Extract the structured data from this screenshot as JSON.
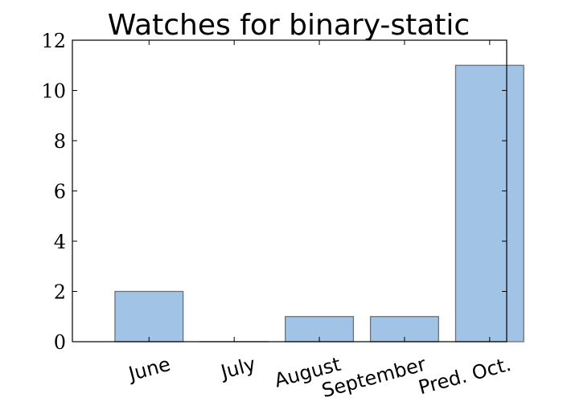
{
  "chart_data": {
    "type": "bar",
    "title": "Watches for binary-static",
    "xlabel": "",
    "ylabel": "",
    "categories": [
      "June",
      "July",
      "August",
      "September",
      "Pred. Oct."
    ],
    "values": [
      2,
      0,
      1,
      1,
      11
    ],
    "ylim": [
      0,
      12
    ],
    "yticks": [
      "0",
      "2",
      "4",
      "6",
      "8",
      "10",
      "12"
    ],
    "grid": false,
    "legend": "none",
    "colors": {
      "bar_fill": "#a1c4e6",
      "bar_edge": "#6b7078",
      "axis": "#000000",
      "background": "#ffffff"
    }
  }
}
